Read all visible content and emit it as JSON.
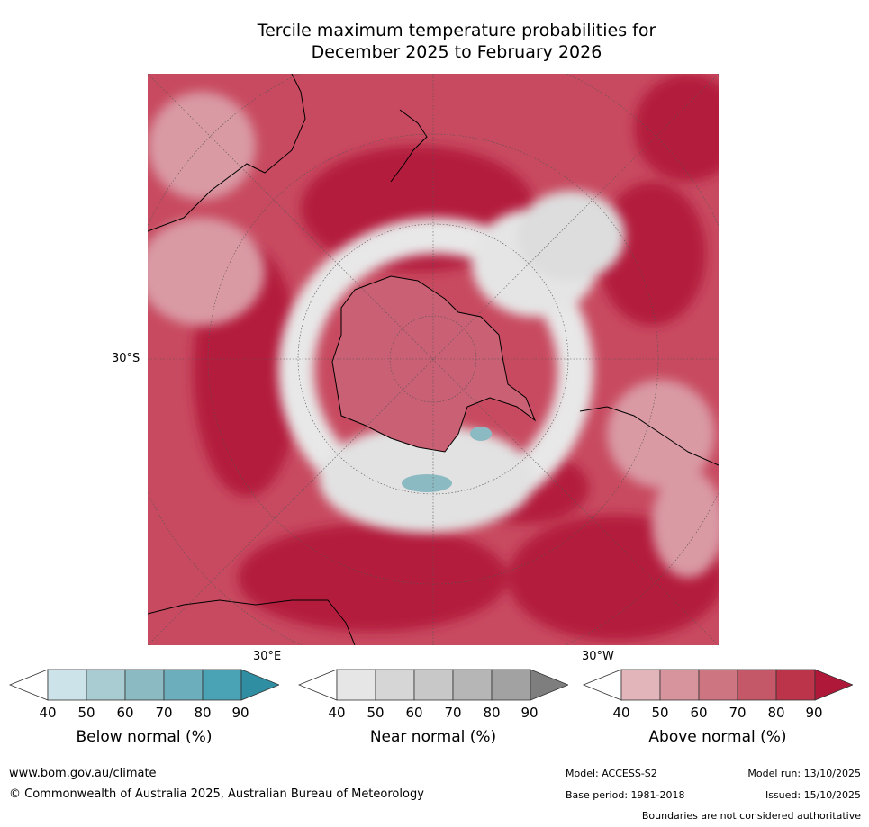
{
  "title": {
    "line1": "Tercile maximum temperature probabilities for",
    "line2": "December 2025 to February 2026"
  },
  "map": {
    "lat_label": "30°S",
    "lon_labels": {
      "east": "30°E",
      "west": "30°W"
    }
  },
  "colorbars": [
    {
      "label": "Below normal (%)",
      "ticks": [
        "40",
        "50",
        "60",
        "70",
        "80",
        "90"
      ],
      "colors": [
        "#ffffff",
        "#cce3ea",
        "#a9ccd3",
        "#8cbac3",
        "#6daebd",
        "#4aa3b4",
        "#2f8ea2"
      ]
    },
    {
      "label": "Near normal (%)",
      "ticks": [
        "40",
        "50",
        "60",
        "70",
        "80",
        "90"
      ],
      "colors": [
        "#ffffff",
        "#e6e6e6",
        "#d6d6d6",
        "#c8c8c8",
        "#b6b6b6",
        "#a2a2a2",
        "#7e7e7e"
      ]
    },
    {
      "label": "Above normal (%)",
      "ticks": [
        "40",
        "50",
        "60",
        "70",
        "80",
        "90"
      ],
      "colors": [
        "#ffffff",
        "#e2b5bb",
        "#d7949d",
        "#cd7580",
        "#c55868",
        "#bc344a",
        "#b0183a"
      ]
    }
  ],
  "footer": {
    "url": "www.bom.gov.au/climate",
    "copyright": "© Commonwealth of Australia 2025, Australian Bureau of Meteorology",
    "model": "Model: ACCESS-S2",
    "model_run": "Model run: 13/10/2025",
    "base_period": "Base period: 1981-2018",
    "issued": "Issued: 15/10/2025",
    "disclaimer": "Boundaries are not considered authoritative"
  }
}
